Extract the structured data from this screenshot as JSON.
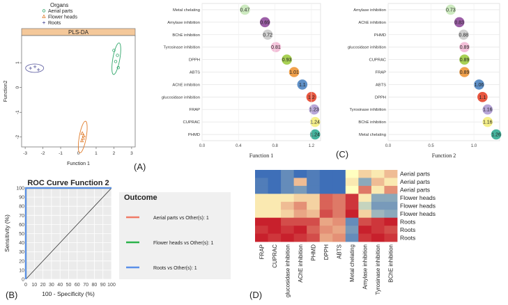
{
  "panel_labels": [
    "(A)",
    "(B)",
    "(C)",
    "(D)"
  ],
  "chart_data": [
    {
      "type": "scatter",
      "title": "PLS-DA",
      "xlabel": "Function 1",
      "ylabel": "Function2",
      "xlim": [
        -3.2,
        3.2
      ],
      "ylim": [
        -2.4,
        2.1
      ],
      "xticks": [
        "-3",
        "-2",
        "-1",
        "0",
        "1",
        "2",
        "3"
      ],
      "yticks": [
        "1",
        "0",
        "-1",
        "-2"
      ],
      "legend_title": "Organs",
      "legend_position": "top",
      "grid": false,
      "series": [
        {
          "name": "Aerial parts",
          "marker": "circle",
          "color": "#2fa66a",
          "points": [
            [
              2.0,
              1.5
            ],
            [
              2.2,
              1.3
            ],
            [
              2.1,
              1.05
            ],
            [
              2.25,
              0.8
            ]
          ]
        },
        {
          "name": "Flower heads",
          "marker": "triangle",
          "color": "#e07b2a",
          "points": [
            [
              0.22,
              -1.85
            ],
            [
              0.3,
              -1.95
            ],
            [
              0.26,
              -2.05
            ],
            [
              0.2,
              -2.15
            ]
          ]
        },
        {
          "name": "Roots",
          "marker": "plus",
          "color": "#6a6aa8",
          "points": [
            [
              -2.7,
              0.78
            ],
            [
              -2.45,
              0.84
            ],
            [
              -2.25,
              0.72
            ]
          ]
        }
      ]
    },
    {
      "type": "line",
      "title": "ROC Curve Function 2",
      "xlabel": "100 - Specificity (%)",
      "ylabel": "Sensitivity (%)",
      "xlim": [
        0,
        100
      ],
      "ylim": [
        0,
        100
      ],
      "xticks": [
        "0",
        "10",
        "20",
        "30",
        "40",
        "50",
        "60",
        "70",
        "80",
        "90",
        "100"
      ],
      "yticks": [
        "0",
        "10",
        "20",
        "30",
        "40",
        "50",
        "60",
        "70",
        "80",
        "90",
        "100"
      ],
      "grid": true,
      "legend_title": "Outcome",
      "legend_position": "right",
      "series": [
        {
          "name": "Aerial parts vs Other(s): 1",
          "color": "#f07b66",
          "x": [
            0,
            0,
            100
          ],
          "y": [
            0,
            100,
            100
          ]
        },
        {
          "name": "Flower heads vs Other(s): 1",
          "color": "#2bb34a",
          "x": [
            0,
            0,
            100
          ],
          "y": [
            0,
            100,
            100
          ]
        },
        {
          "name": "Roots vs Other(s): 1",
          "color": "#5b8fe8",
          "x": [
            0,
            0,
            100
          ],
          "y": [
            0,
            100,
            100
          ]
        }
      ],
      "diagonal": true
    },
    {
      "type": "scatter",
      "style": "dot-plot",
      "xlabel": "Function 1",
      "xlim": [
        0,
        1.3
      ],
      "xticks": [
        "0.0",
        "0.4",
        "0.8",
        "1.2"
      ],
      "categories": [
        "Metal chelating",
        "Amylase inhibition",
        "BChE inhibition",
        "Tyrosinase inhibition",
        "DPPH",
        "ABTS",
        "AChE inhibition",
        "glucosidase inhibition",
        "FRAP",
        "CUPRAC",
        "PHMD"
      ],
      "values": [
        0.47,
        0.69,
        0.72,
        0.81,
        0.93,
        1.01,
        1.1,
        1.2,
        1.23,
        1.24,
        1.24
      ],
      "labels": [
        "0.47",
        "0.69",
        "0.72",
        "0.81",
        "0.93",
        "1.01",
        "1.1",
        "1.2",
        "1.23",
        "1.24",
        "1.24"
      ],
      "colors": [
        "#cdeac0",
        "#9c5fa7",
        "#d0d0d0",
        "#f3bfd8",
        "#a8d154",
        "#f0a04b",
        "#5f90c7",
        "#e8563f",
        "#b7a6d8",
        "#f5f08a",
        "#45b39d"
      ]
    },
    {
      "type": "scatter",
      "style": "dot-plot",
      "xlabel": "Function 2",
      "xlim": [
        0,
        1.3
      ],
      "xticks": [
        "0.0",
        "0.5",
        "1.0"
      ],
      "categories": [
        "Amylase inhibition",
        "AChE inhibition",
        "PHMD",
        "glucosidase inhibition",
        "CUPRAC",
        "FRAP",
        "ABTS",
        "DPPH",
        "Tyrosinase inhibition",
        "BChE inhibition",
        "Metal chelating"
      ],
      "values": [
        0.73,
        0.83,
        0.88,
        0.89,
        0.89,
        0.89,
        1.06,
        1.1,
        1.16,
        1.16,
        1.26
      ],
      "labels": [
        "0.73",
        "0.83",
        "0.88",
        "0.89",
        "0.89",
        "0.89",
        "1.06",
        "1.1",
        "1.16",
        "1.16",
        "1.26"
      ],
      "colors": [
        "#cdeac0",
        "#9c5fa7",
        "#d0d0d0",
        "#f3bfd8",
        "#a8d154",
        "#f0a04b",
        "#5f90c7",
        "#e8563f",
        "#b7a6d8",
        "#f5f08a",
        "#45b39d"
      ]
    },
    {
      "type": "heatmap",
      "columns": [
        "FRAP",
        "CUPRAC",
        "glucosidase inhibition",
        "AChE inhibition",
        "PHMD",
        "DPPH",
        "ABTS",
        "Metal chelating",
        "Amylase inhibition",
        "Tyrosinase inhibition",
        "BChE inhibition"
      ],
      "rows": [
        "Aerial parts",
        "Aerial parts",
        "Aerial parts",
        "Flower heads",
        "Flower heads",
        "Flower heads",
        "Roots",
        "Roots",
        "Roots"
      ],
      "values": [
        [
          -1.0,
          -1.0,
          -0.8,
          -1.0,
          -0.9,
          -1.0,
          -1.0,
          0.0,
          0.2,
          0.1,
          0.3
        ],
        [
          -0.9,
          -1.0,
          -0.8,
          0.3,
          -0.9,
          -1.0,
          -1.0,
          0.1,
          -0.6,
          0.3,
          0.1
        ],
        [
          -0.9,
          -1.0,
          -0.8,
          -0.7,
          -0.9,
          -1.0,
          -1.0,
          0.0,
          0.6,
          0.1,
          0.5
        ],
        [
          0.1,
          0.1,
          0.1,
          0.2,
          0.2,
          0.7,
          0.6,
          0.9,
          0.1,
          -0.6,
          -0.6
        ],
        [
          0.1,
          0.1,
          0.3,
          0.5,
          0.2,
          0.7,
          0.6,
          0.9,
          -0.3,
          -0.7,
          -0.7
        ],
        [
          0.1,
          0.1,
          0.2,
          0.4,
          0.3,
          0.8,
          0.6,
          1.0,
          0.2,
          -0.5,
          -0.6
        ],
        [
          1.0,
          1.0,
          0.8,
          0.8,
          0.8,
          0.4,
          0.5,
          -0.8,
          0.8,
          0.9,
          1.0
        ],
        [
          0.9,
          1.0,
          0.9,
          1.0,
          0.7,
          0.5,
          0.4,
          -0.7,
          1.0,
          0.9,
          0.8
        ],
        [
          1.0,
          0.9,
          1.0,
          0.9,
          0.8,
          0.4,
          0.5,
          -0.8,
          0.9,
          1.0,
          0.9
        ]
      ],
      "color_low": "#3e6fb8",
      "color_mid": "#ffffc0",
      "color_high": "#c8202c"
    }
  ]
}
